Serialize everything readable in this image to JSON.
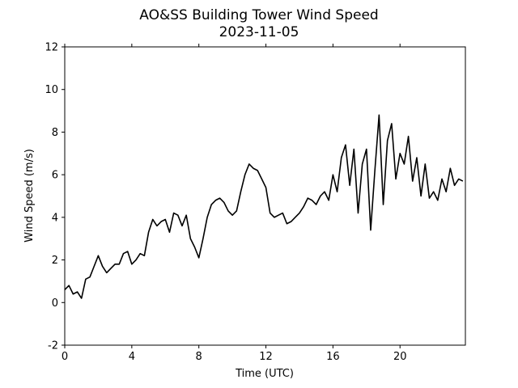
{
  "chart_data": {
    "type": "line",
    "title": "AO&SS Building Tower Wind Speed",
    "subtitle": "2023-11-05",
    "xlabel": "Time (UTC)",
    "ylabel": "Wind Speed (m/s)",
    "x": [
      0,
      0.25,
      0.5,
      0.75,
      1,
      1.25,
      1.5,
      1.75,
      2,
      2.25,
      2.5,
      2.75,
      3,
      3.25,
      3.5,
      3.75,
      4,
      4.25,
      4.5,
      4.75,
      5,
      5.25,
      5.5,
      5.75,
      6,
      6.25,
      6.5,
      6.75,
      7,
      7.25,
      7.5,
      7.75,
      8,
      8.25,
      8.5,
      8.75,
      9,
      9.25,
      9.5,
      9.75,
      10,
      10.25,
      10.5,
      10.75,
      11,
      11.25,
      11.5,
      11.75,
      12,
      12.25,
      12.5,
      12.75,
      13,
      13.25,
      13.5,
      13.75,
      14,
      14.25,
      14.5,
      14.75,
      15,
      15.25,
      15.5,
      15.75,
      16,
      16.25,
      16.5,
      16.75,
      17,
      17.25,
      17.5,
      17.75,
      18,
      18.25,
      18.5,
      18.75,
      19,
      19.25,
      19.5,
      19.75,
      20,
      20.25,
      20.5,
      20.75,
      21,
      21.25,
      21.5,
      21.75,
      22,
      22.25,
      22.5,
      22.75,
      23,
      23.25,
      23.5,
      23.75
    ],
    "series": [
      {
        "name": "Wind Speed",
        "color": "#000000",
        "values": [
          0.6,
          0.8,
          0.4,
          0.5,
          0.2,
          1.1,
          1.2,
          1.7,
          2.2,
          1.7,
          1.4,
          1.6,
          1.8,
          1.8,
          2.3,
          2.4,
          1.8,
          2.0,
          2.3,
          2.2,
          3.3,
          3.9,
          3.6,
          3.8,
          3.9,
          3.3,
          4.2,
          4.1,
          3.6,
          4.1,
          3.0,
          2.6,
          2.1,
          3.0,
          4.0,
          4.6,
          4.8,
          4.9,
          4.7,
          4.3,
          4.1,
          4.3,
          5.2,
          6.0,
          6.5,
          6.3,
          6.2,
          5.8,
          5.4,
          4.2,
          4.0,
          4.1,
          4.2,
          3.7,
          3.8,
          4.0,
          4.2,
          4.5,
          4.9,
          4.8,
          4.6,
          5.0,
          5.2,
          4.8,
          6.0,
          5.2,
          6.8,
          7.4,
          5.5,
          7.2,
          4.2,
          6.5,
          7.2,
          3.4,
          6.2,
          8.8,
          4.6,
          7.6,
          8.4,
          5.8,
          7.0,
          6.5,
          7.8,
          5.7,
          6.8,
          5.0,
          6.5,
          4.9,
          5.2,
          4.8,
          5.8,
          5.2,
          6.3,
          5.5,
          5.8,
          5.7
        ]
      }
    ],
    "xlim": [
      0,
      23.9
    ],
    "xticks": [
      0,
      4,
      8,
      12,
      16,
      20
    ],
    "ylim": [
      -2,
      12
    ],
    "yticks": [
      -2,
      0,
      2,
      4,
      6,
      8,
      10,
      12
    ]
  }
}
